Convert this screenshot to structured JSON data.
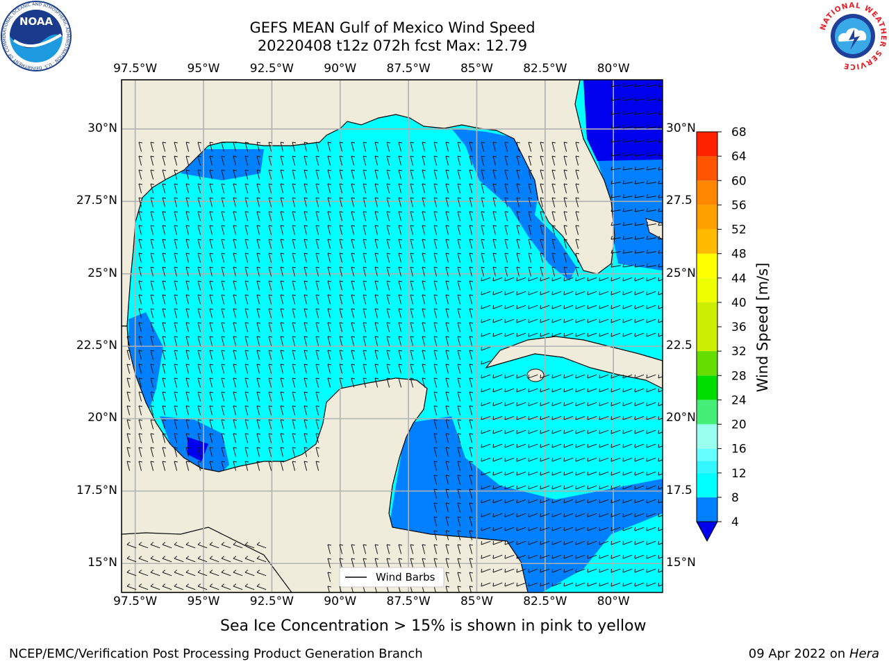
{
  "title": {
    "line1": "GEFS MEAN Gulf of Mexico Wind Speed",
    "line2": "20220408 t12z 072h fcst   Max: 12.79"
  },
  "axes": {
    "lon_labels": [
      "97.5°W",
      "95°W",
      "92.5°W",
      "90°W",
      "87.5°W",
      "85°W",
      "82.5°W",
      "80°W"
    ],
    "lat_labels_left": [
      "30°N",
      "27.5°N",
      "25°N",
      "22.5°N",
      "20°N",
      "17.5°N",
      "15°N"
    ],
    "lat_labels_right": [
      "30°N",
      "27.5",
      "25°N",
      "22.5",
      "20°N",
      "17.5",
      "15°N"
    ],
    "lon_range": [
      -98,
      -78.2
    ],
    "lat_range": [
      14,
      31.7
    ]
  },
  "colorbar": {
    "label": "Wind Speed [m/s]",
    "ticks": [
      "4",
      "8",
      "12",
      "16",
      "20",
      "24",
      "28",
      "32",
      "36",
      "40",
      "44",
      "48",
      "52",
      "56",
      "60",
      "64",
      "68"
    ],
    "levels": [
      {
        "from": 4,
        "to": 8,
        "color": "#0080ff"
      },
      {
        "from": 8,
        "to": 12,
        "color": "#00ffff"
      },
      {
        "from": 12,
        "to": 14,
        "color": "#33f5ff"
      },
      {
        "from": 14,
        "to": 16,
        "color": "#66ffff"
      },
      {
        "from": 16,
        "to": 20,
        "color": "#99ffee"
      },
      {
        "from": 20,
        "to": 24,
        "color": "#44ee77"
      },
      {
        "from": 24,
        "to": 28,
        "color": "#00dd00"
      },
      {
        "from": 28,
        "to": 32,
        "color": "#66dd00"
      },
      {
        "from": 32,
        "to": 36,
        "color": "#ccee00"
      },
      {
        "from": 36,
        "to": 40,
        "color": "#ccee00"
      },
      {
        "from": 40,
        "to": 44,
        "color": "#eeff00"
      },
      {
        "from": 44,
        "to": 48,
        "color": "#ffff00"
      },
      {
        "from": 48,
        "to": 52,
        "color": "#ffbb00"
      },
      {
        "from": 52,
        "to": 56,
        "color": "#ffa000"
      },
      {
        "from": 56,
        "to": 60,
        "color": "#ff8800"
      },
      {
        "from": 60,
        "to": 64,
        "color": "#ff5500"
      },
      {
        "from": 64,
        "to": 68,
        "color": "#ff2200"
      }
    ],
    "under_color": "#0000ee"
  },
  "colors": {
    "land": "#efecdc",
    "water_low": "#0000ee",
    "water_4_8": "#0080ff",
    "water_8_12": "#00ffff",
    "grid": "#b0b0b0"
  },
  "legend": {
    "label": "Wind Barbs"
  },
  "caption": "Sea Ice Concentration > 15% is shown in pink to yellow",
  "footer": {
    "left": "NCEP/EMC/Verification Post Processing Product Generation Branch",
    "right_date": "09 Apr 2022 on ",
    "right_host": "Hera"
  },
  "logos": {
    "noaa": "NOAA",
    "noaa_ring": "NATIONAL OCEANIC AND ATMOSPHERIC ADMINISTRATION · U.S. DEPARTMENT OF COMMERCE",
    "nws_ring": "NATIONAL WEATHER SERVICE"
  }
}
